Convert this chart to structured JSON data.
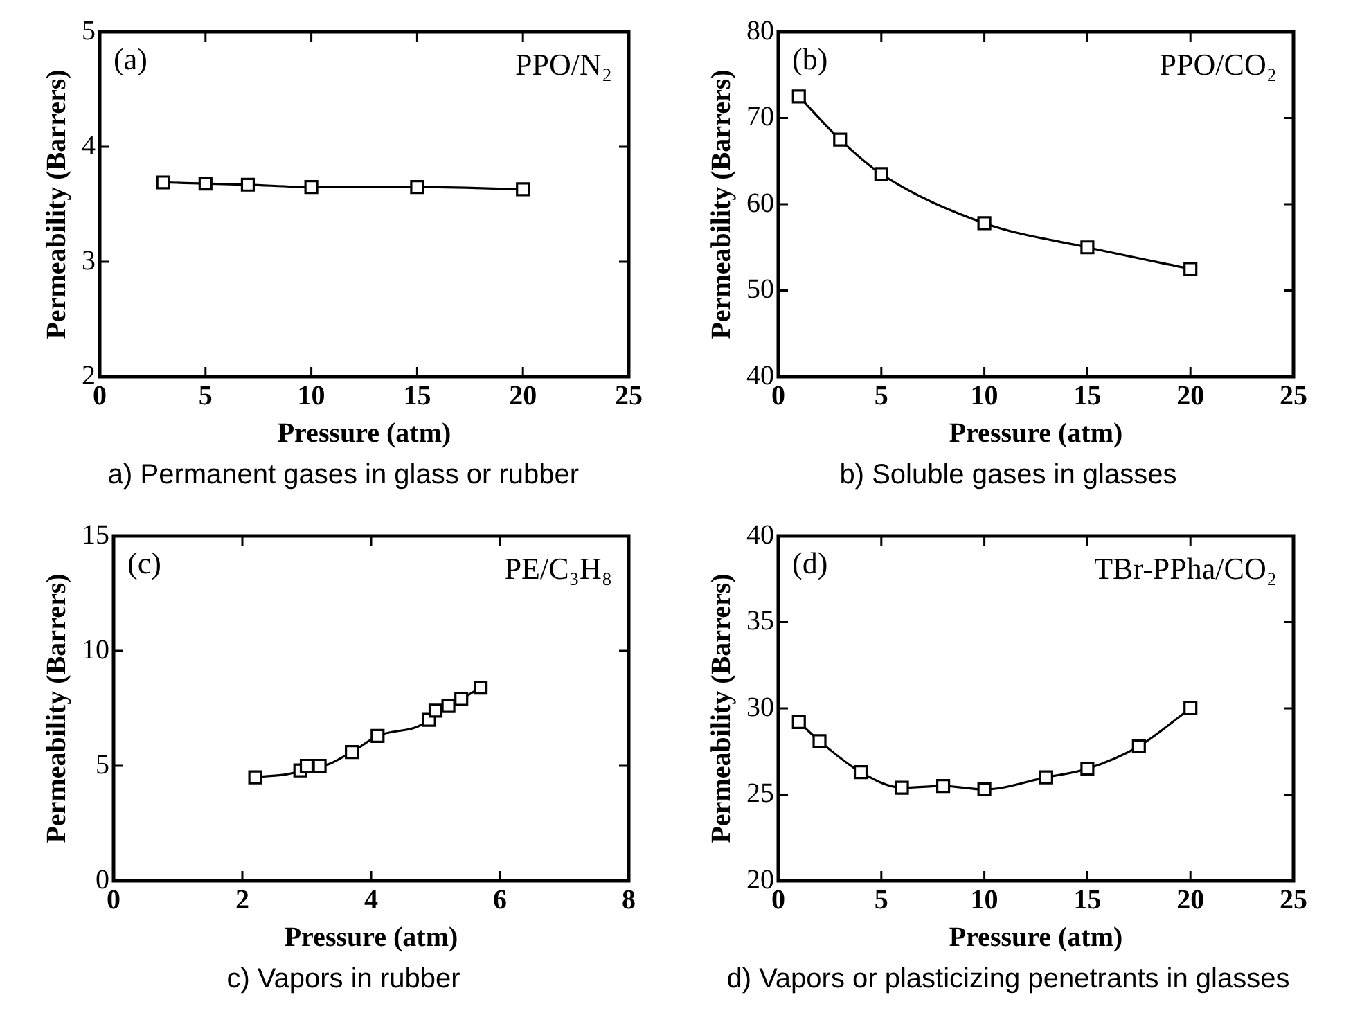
{
  "chart_data": [
    {
      "type": "line",
      "xlabel": "Pressure (atm)",
      "ylabel": "Permeability (Barrers)",
      "annotations": [
        "(a)",
        "PPO/N₂",
        "a) Permanent gases in glass or rubber"
      ],
      "x": [
        3,
        5,
        7,
        10,
        15,
        20
      ],
      "series": [
        {
          "color": "#000000",
          "values": [
            3.69,
            3.68,
            3.67,
            3.65,
            3.65,
            3.63
          ]
        }
      ],
      "xlim": [
        0,
        25
      ],
      "xticks": [
        0,
        5,
        10,
        15,
        20,
        25
      ],
      "ylim": [
        2,
        5
      ],
      "yticks": [
        2,
        3,
        4,
        5
      ],
      "grid": false,
      "legend": false,
      "marker": "square",
      "line_style": "solid"
    },
    {
      "type": "line",
      "xlabel": "Pressure (atm)",
      "ylabel": "Permeability (Barrers)",
      "annotations": [
        "(b)",
        "PPO/CO₂",
        "b) Soluble gases in glasses"
      ],
      "x": [
        1,
        3,
        5,
        10,
        15,
        20
      ],
      "series": [
        {
          "color": "#000000",
          "values": [
            72.5,
            67.5,
            63.5,
            57.8,
            55,
            52.5
          ]
        }
      ],
      "xlim": [
        0,
        25
      ],
      "xticks": [
        0,
        5,
        10,
        15,
        20,
        25
      ],
      "ylim": [
        40,
        80
      ],
      "yticks": [
        40,
        50,
        60,
        70,
        80
      ],
      "grid": false,
      "legend": false,
      "marker": "square",
      "line_style": "solid"
    },
    {
      "type": "line",
      "xlabel": "Pressure (atm)",
      "ylabel": "Permeability (Barrers)",
      "annotations": [
        "(c)",
        "PE/C₃H₈",
        "c) Vapors in rubber"
      ],
      "x": [
        2.2,
        2.9,
        3.0,
        3.2,
        3.7,
        4.1,
        4.9,
        5.0,
        5.2,
        5.4,
        5.7
      ],
      "series": [
        {
          "color": "#000000",
          "values": [
            4.5,
            4.8,
            5.0,
            5.0,
            5.6,
            6.3,
            7.0,
            7.4,
            7.6,
            7.9,
            8.4
          ]
        }
      ],
      "xlim": [
        0,
        8
      ],
      "xticks": [
        0,
        2,
        4,
        6,
        8
      ],
      "ylim": [
        0,
        15
      ],
      "yticks": [
        0,
        5,
        10,
        15
      ],
      "grid": false,
      "legend": false,
      "marker": "square",
      "line_style": "solid"
    },
    {
      "type": "line",
      "xlabel": "Pressure (atm)",
      "ylabel": "Permeability (Barrers)",
      "annotations": [
        "(d)",
        "TBr-PPha/CO₂",
        "d) Vapors or plasticizing penetrants in glasses"
      ],
      "x": [
        1,
        2,
        4,
        6,
        8,
        10,
        13,
        15,
        17.5,
        20
      ],
      "series": [
        {
          "color": "#000000",
          "values": [
            29.2,
            28.1,
            26.3,
            25.4,
            25.5,
            25.3,
            26.0,
            26.5,
            27.8,
            30.0
          ]
        }
      ],
      "xlim": [
        0,
        25
      ],
      "xticks": [
        0,
        5,
        10,
        15,
        20,
        25
      ],
      "ylim": [
        20,
        40
      ],
      "yticks": [
        20,
        25,
        30,
        35,
        40
      ],
      "grid": false,
      "legend": false,
      "marker": "square",
      "line_style": "solid"
    }
  ]
}
